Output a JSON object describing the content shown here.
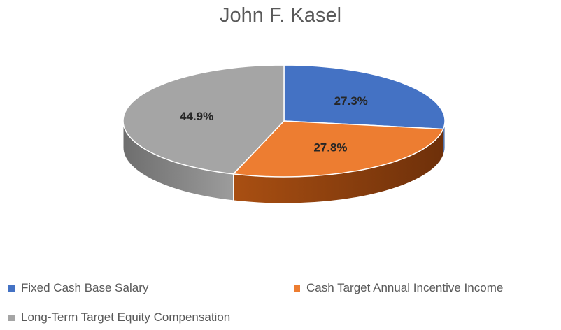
{
  "chart_data": {
    "type": "pie",
    "title": "John F. Kasel",
    "slices": [
      {
        "name": "Fixed Cash Base Salary",
        "value": 27.3,
        "label": "27.3%",
        "color": "#4472C4"
      },
      {
        "name": "Cash Target Annual Incentive Income",
        "value": 27.8,
        "label": "27.8%",
        "color": "#ED7D31"
      },
      {
        "name": "Long-Term Target Equity Compensation",
        "value": 44.9,
        "label": "44.9%",
        "color": "#A5A5A5"
      }
    ],
    "legend_position": "bottom"
  }
}
